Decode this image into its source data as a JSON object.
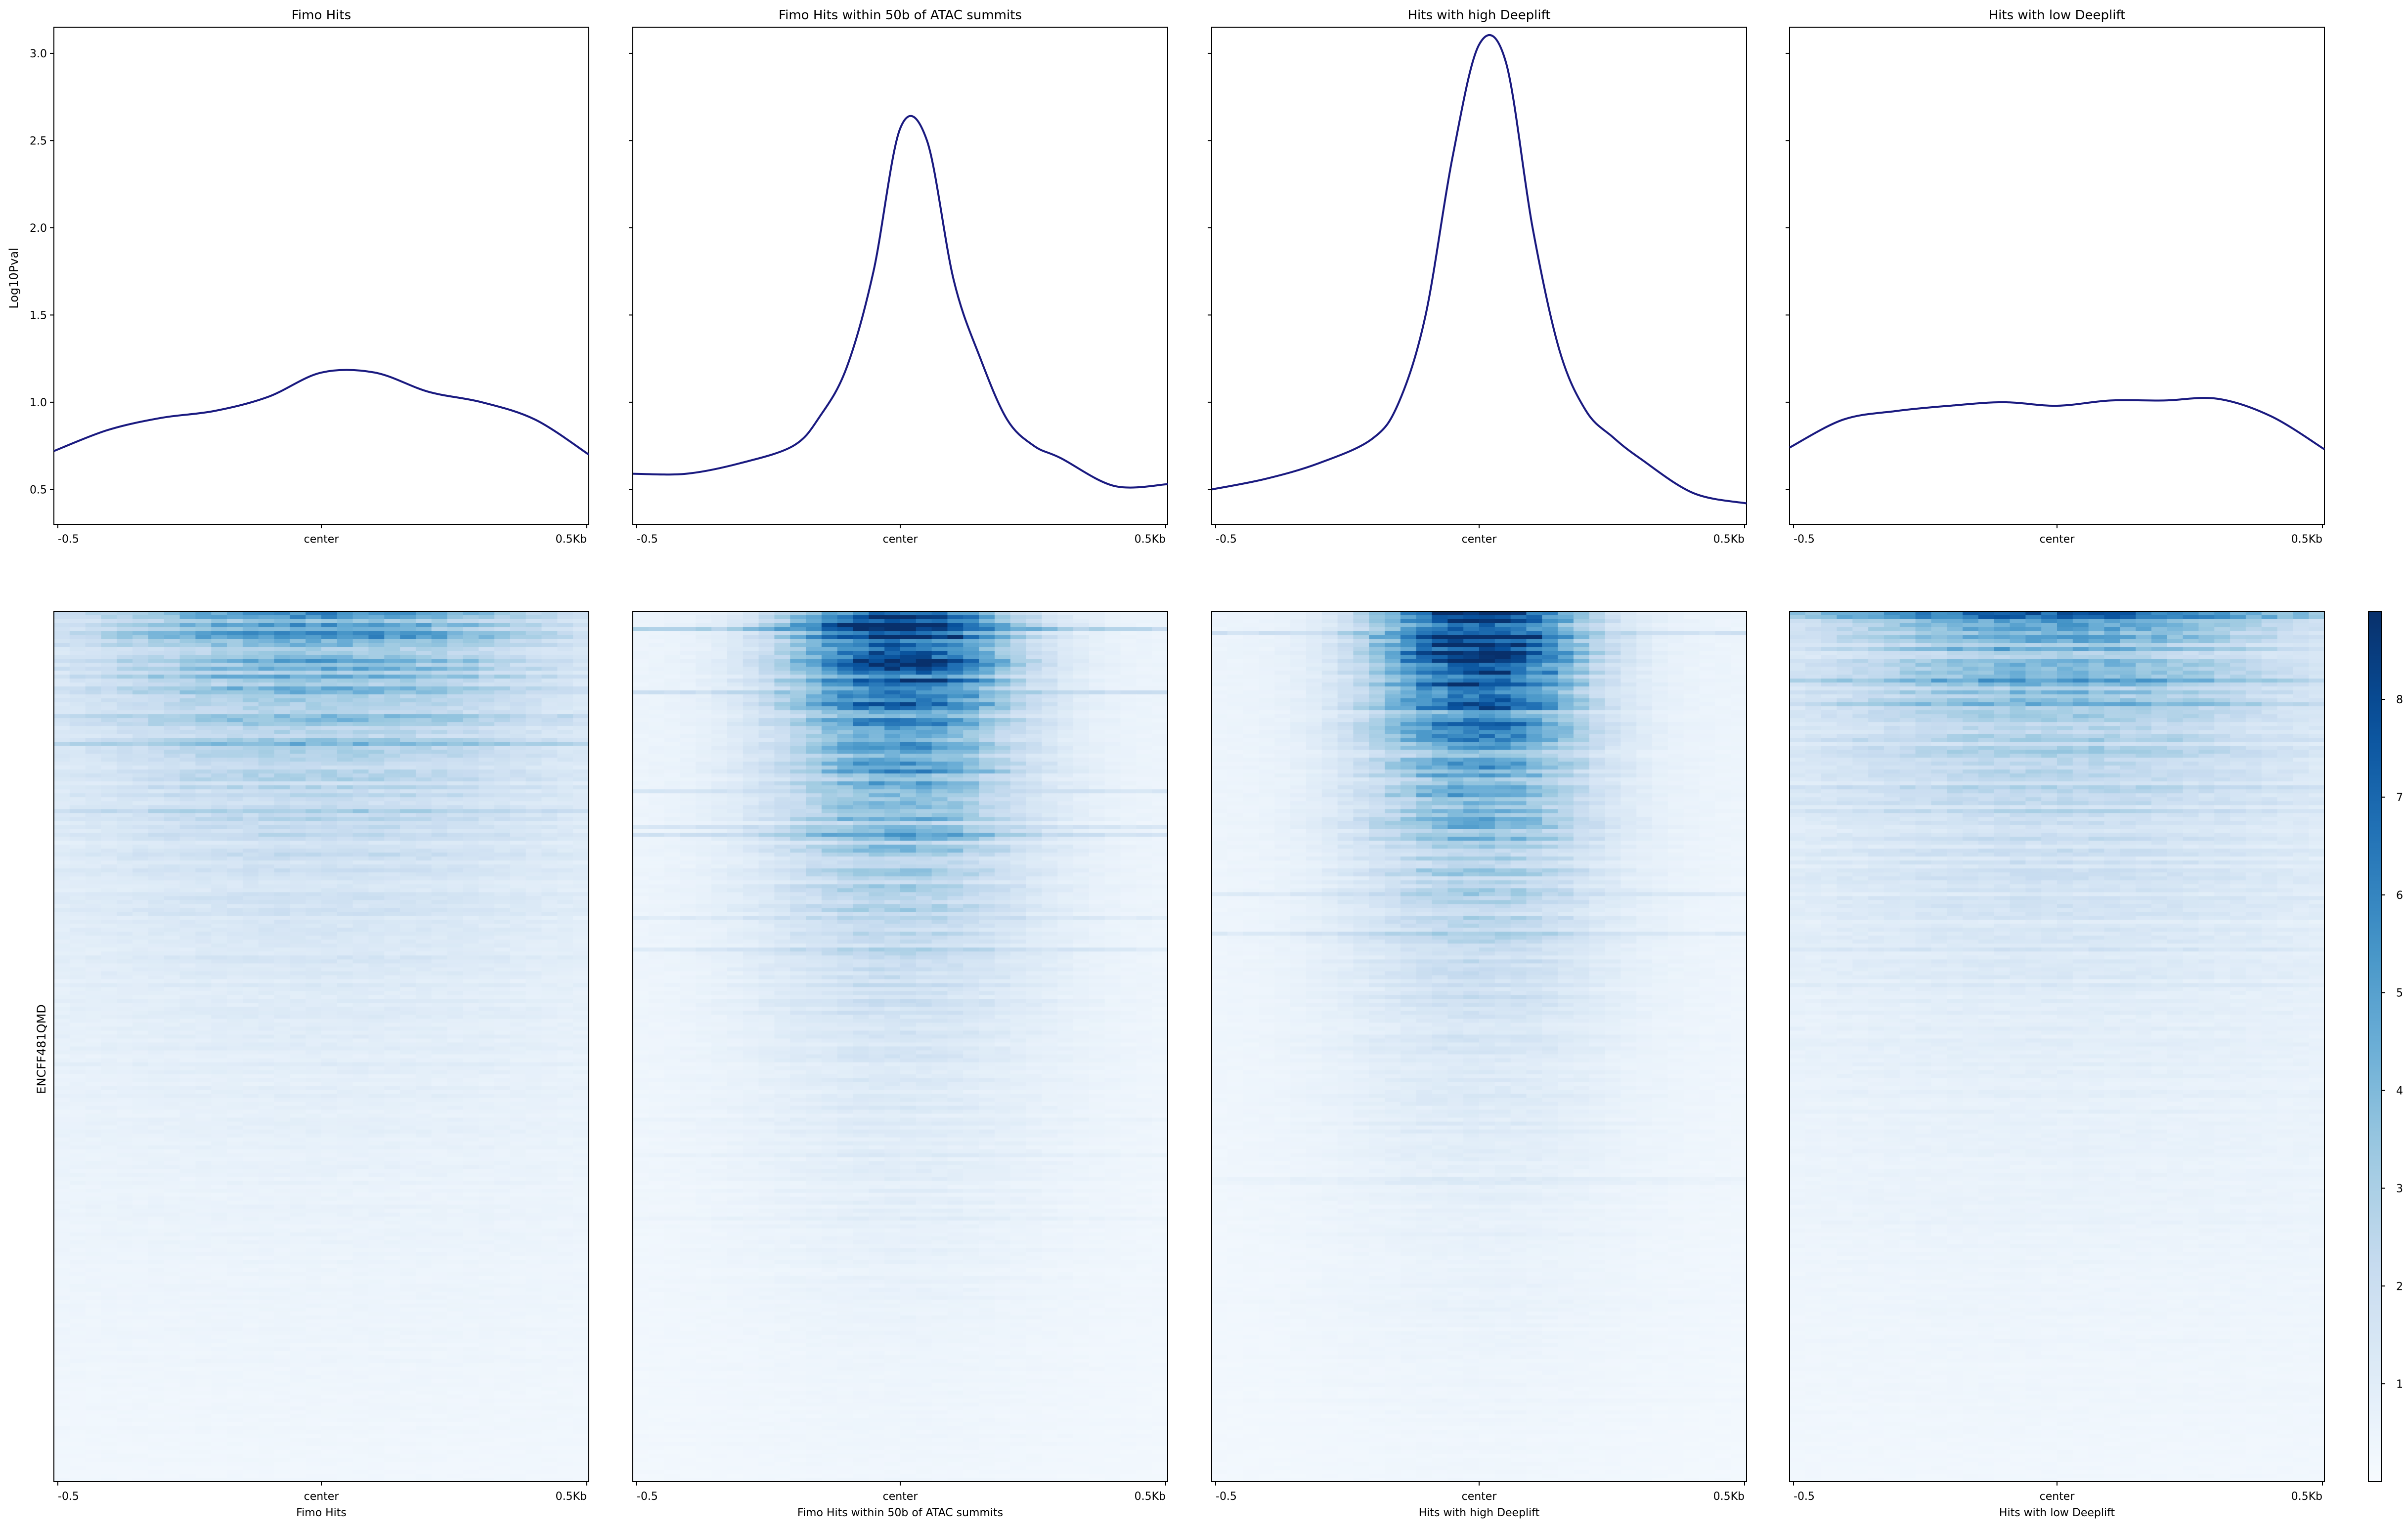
{
  "ylabel": "Log10Pval",
  "row_label": "ENCFF481QMD",
  "x_ticks": [
    "-0.5",
    "center",
    "0.5Kb"
  ],
  "y_ticks": [
    "0.5",
    "1.0",
    "1.5",
    "2.0",
    "2.5",
    "3.0"
  ],
  "colorbar_ticks": [
    "1",
    "2",
    "3",
    "4",
    "5",
    "6",
    "7",
    "8"
  ],
  "line_color": "#1a1a80",
  "colormap": "Blues",
  "chart_data": [
    {
      "type": "line",
      "title": "Fimo Hits",
      "xlabel": "Fimo Hits",
      "x": [
        -0.5,
        -0.4,
        -0.3,
        -0.2,
        -0.1,
        0,
        0.1,
        0.2,
        0.3,
        0.4,
        0.5
      ],
      "y": [
        0.72,
        0.84,
        0.91,
        0.95,
        1.03,
        1.17,
        1.17,
        1.06,
        1.0,
        0.9,
        0.7
      ],
      "ylim": [
        0.3,
        3.15
      ]
    },
    {
      "type": "line",
      "title": "Fimo Hits within 50b of ATAC summits",
      "xlabel": "Fimo Hits within 50b of ATAC summits",
      "x": [
        -0.5,
        -0.4,
        -0.3,
        -0.2,
        -0.15,
        -0.1,
        -0.05,
        0,
        0.05,
        0.1,
        0.15,
        0.2,
        0.25,
        0.3,
        0.4,
        0.5
      ],
      "y": [
        0.59,
        0.59,
        0.65,
        0.75,
        0.92,
        1.2,
        1.75,
        2.57,
        2.5,
        1.7,
        1.25,
        0.9,
        0.75,
        0.68,
        0.52,
        0.53
      ],
      "ylim": [
        0.3,
        3.15
      ]
    },
    {
      "type": "line",
      "title": "Hits with high Deeplift",
      "xlabel": "Hits with high Deeplift",
      "x": [
        -0.5,
        -0.4,
        -0.3,
        -0.2,
        -0.15,
        -0.1,
        -0.05,
        0,
        0.05,
        0.1,
        0.15,
        0.2,
        0.25,
        0.3,
        0.4,
        0.5
      ],
      "y": [
        0.5,
        0.56,
        0.65,
        0.79,
        1.0,
        1.5,
        2.4,
        3.05,
        2.95,
        2.0,
        1.3,
        0.95,
        0.8,
        0.68,
        0.48,
        0.42
      ],
      "ylim": [
        0.3,
        3.15
      ]
    },
    {
      "type": "line",
      "title": "Hits with low Deeplift",
      "xlabel": "Hits with low Deeplift",
      "x": [
        -0.5,
        -0.4,
        -0.3,
        -0.2,
        -0.1,
        0,
        0.1,
        0.2,
        0.3,
        0.4,
        0.5
      ],
      "y": [
        0.74,
        0.9,
        0.95,
        0.98,
        1.0,
        0.98,
        1.01,
        1.01,
        1.02,
        0.92,
        0.73
      ],
      "ylim": [
        0.3,
        3.15
      ]
    },
    {
      "type": "heatmap",
      "title": "",
      "colormap": "Blues",
      "vmin": 0,
      "vmax": 8.9,
      "panels": [
        {
          "name": "Fimo Hits",
          "peak": 4.5,
          "width": 0.3,
          "background": 0.6
        },
        {
          "name": "Fimo Hits within 50b of ATAC summits",
          "peak": 8.8,
          "width": 0.14,
          "background": 0.5
        },
        {
          "name": "Hits with high Deeplift",
          "peak": 8.8,
          "width": 0.13,
          "background": 0.5
        },
        {
          "name": "Hits with low Deeplift",
          "peak": 4.0,
          "width": 0.3,
          "background": 0.6
        }
      ]
    }
  ]
}
